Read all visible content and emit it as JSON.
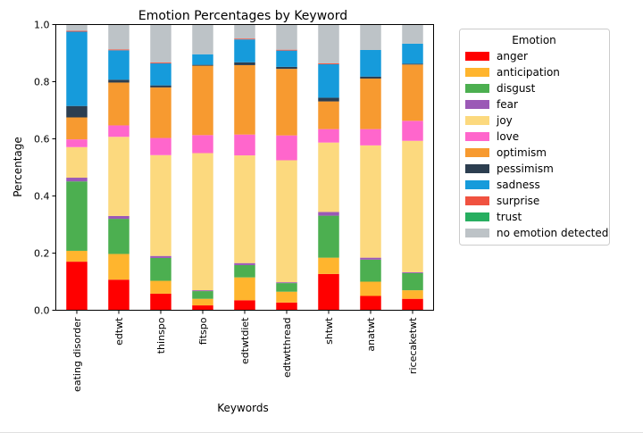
{
  "chart_data": {
    "type": "bar",
    "stacked": true,
    "title": "Emotion Percentages by Keyword",
    "xlabel": "Keywords",
    "ylabel": "Percentage",
    "ylim": [
      0,
      1.0
    ],
    "yticks": [
      0.0,
      0.2,
      0.4,
      0.6,
      0.8,
      1.0
    ],
    "grid": false,
    "legend": {
      "title": "Emotion",
      "placement": "right-outside"
    },
    "categories": [
      "eating disorder",
      "edtwt",
      "thinspo",
      "fitspo",
      "edtwtdiet",
      "edtwtthread",
      "shtwt",
      "anatwt",
      "ricecaketwt"
    ],
    "series": [
      {
        "name": "anger",
        "color": "#ff0000",
        "values": [
          0.17,
          0.107,
          0.058,
          0.017,
          0.035,
          0.027,
          0.127,
          0.05,
          0.04
        ]
      },
      {
        "name": "anticipation",
        "color": "#ffb52e",
        "values": [
          0.038,
          0.09,
          0.045,
          0.023,
          0.08,
          0.038,
          0.057,
          0.05,
          0.03
        ]
      },
      {
        "name": "disgust",
        "color": "#4caf50",
        "values": [
          0.243,
          0.123,
          0.08,
          0.027,
          0.043,
          0.03,
          0.147,
          0.077,
          0.06
        ]
      },
      {
        "name": "fear",
        "color": "#9b59b6",
        "values": [
          0.013,
          0.01,
          0.007,
          0.003,
          0.007,
          0.003,
          0.013,
          0.007,
          0.003
        ]
      },
      {
        "name": "joy",
        "color": "#fcd97e",
        "values": [
          0.107,
          0.277,
          0.353,
          0.48,
          0.377,
          0.427,
          0.243,
          0.393,
          0.46
        ]
      },
      {
        "name": "love",
        "color": "#ff66cc",
        "values": [
          0.027,
          0.04,
          0.06,
          0.063,
          0.073,
          0.087,
          0.047,
          0.057,
          0.07
        ]
      },
      {
        "name": "optimism",
        "color": "#f79a30",
        "values": [
          0.077,
          0.15,
          0.177,
          0.243,
          0.243,
          0.233,
          0.097,
          0.177,
          0.197
        ]
      },
      {
        "name": "pessimism",
        "color": "#2c3e50",
        "values": [
          0.04,
          0.01,
          0.007,
          0.003,
          0.01,
          0.007,
          0.013,
          0.007,
          0.003
        ]
      },
      {
        "name": "sadness",
        "color": "#169bdb",
        "values": [
          0.26,
          0.103,
          0.077,
          0.037,
          0.08,
          0.057,
          0.117,
          0.093,
          0.07
        ]
      },
      {
        "name": "surprise",
        "color": "#f05240",
        "values": [
          0.003,
          0.003,
          0.003,
          0.0,
          0.003,
          0.003,
          0.003,
          0.0,
          0.0
        ]
      },
      {
        "name": "trust",
        "color": "#27ae60",
        "values": [
          0.0,
          0.0,
          0.0,
          0.0,
          0.0,
          0.0,
          0.0,
          0.0,
          0.0
        ]
      },
      {
        "name": "no emotion detected",
        "color": "#bdc3c7",
        "values": [
          0.022,
          0.087,
          0.133,
          0.103,
          0.049,
          0.088,
          0.136,
          0.089,
          0.067
        ]
      }
    ]
  }
}
